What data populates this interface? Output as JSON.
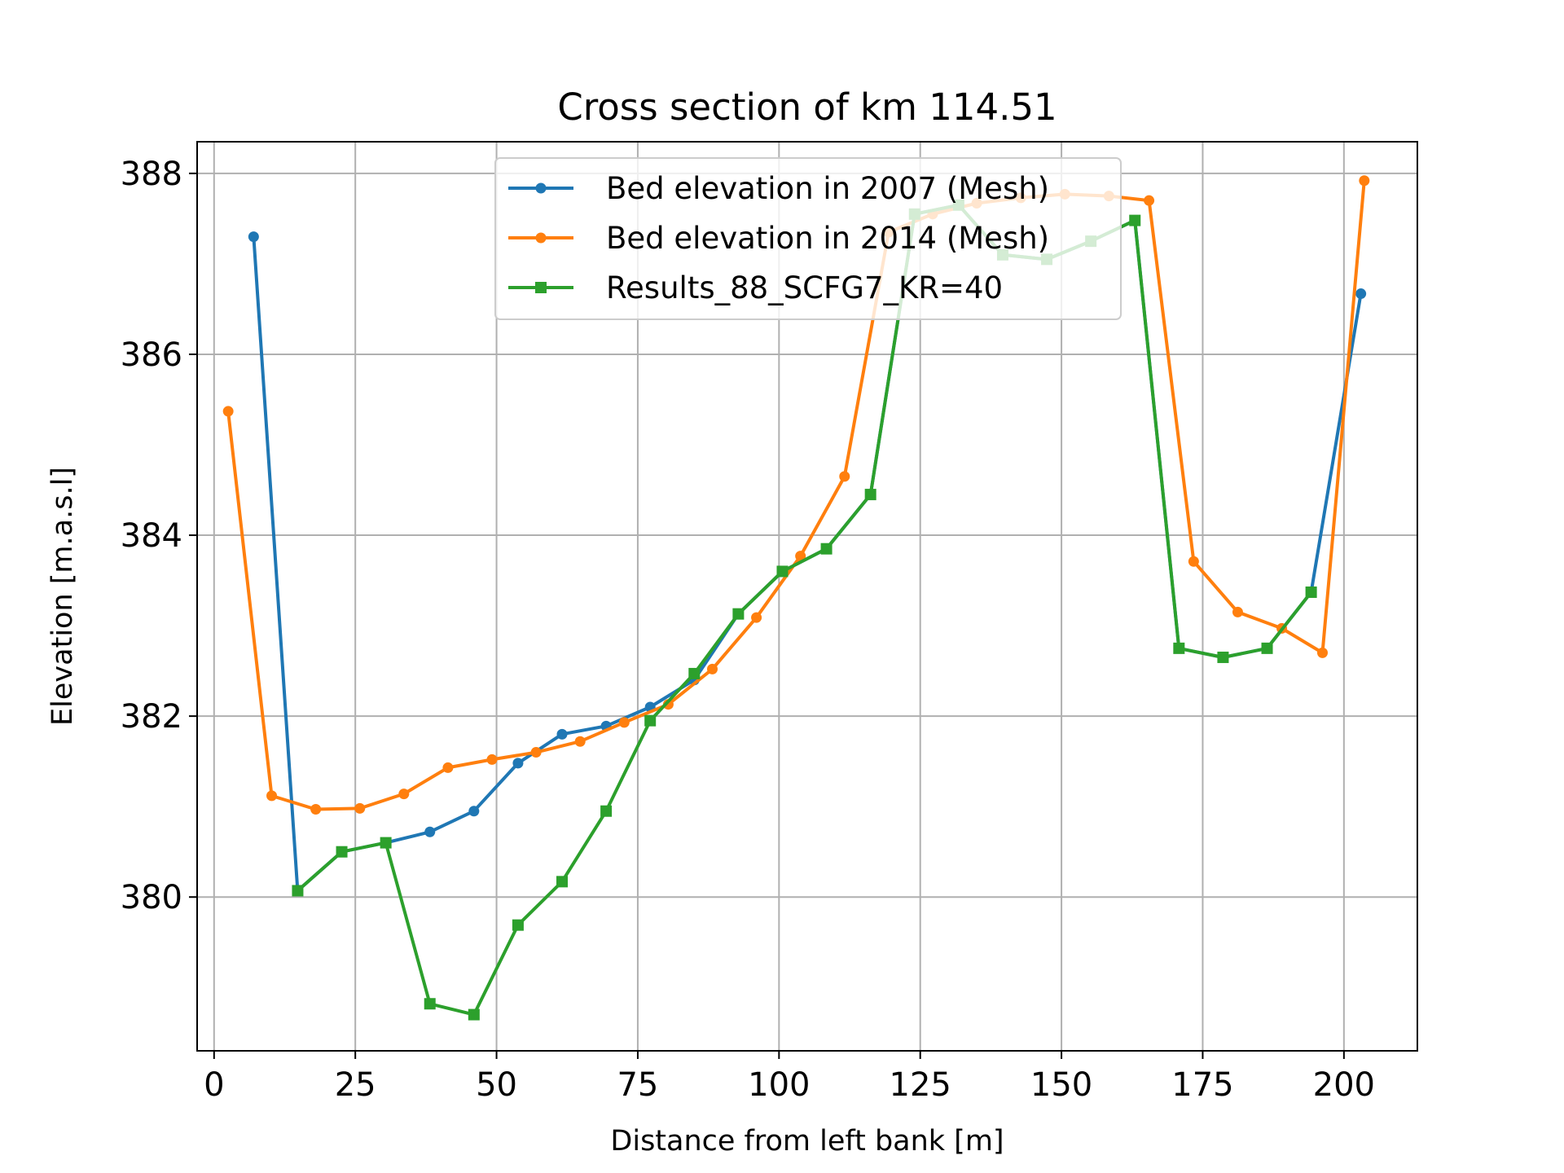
{
  "chart_data": {
    "type": "line",
    "title": "Cross section of km 114.51",
    "xlabel": "Distance from left bank [m]",
    "ylabel": "Elevation [m.a.s.l]",
    "xlim": [
      -3,
      213
    ],
    "ylim": [
      378.3,
      388.35
    ],
    "xticks": [
      0,
      25,
      50,
      75,
      100,
      125,
      150,
      175,
      200
    ],
    "yticks": [
      380,
      382,
      384,
      386,
      388
    ],
    "grid": true,
    "legend_position": "upper-center",
    "series": [
      {
        "name": "Bed elevation in 2007 (Mesh)",
        "color": "#1f77b4",
        "marker": "circle",
        "x": [
          7,
          14.8,
          22.6,
          30.4,
          38.2,
          46,
          53.8,
          61.6,
          69.4,
          77.2,
          85,
          92.8,
          100.6,
          108.4,
          116.2,
          124,
          131.8,
          139.6,
          147.4,
          155.2,
          163,
          170.8,
          178.6,
          186.4,
          194.2,
          203
        ],
        "y": [
          387.3,
          380.07,
          380.5,
          380.6,
          380.72,
          380.95,
          381.48,
          381.8,
          381.89,
          382.1,
          382.4,
          383.13,
          383.6,
          383.85,
          384.45,
          387.55,
          387.65,
          387.1,
          387.05,
          387.25,
          387.48,
          382.75,
          382.65,
          382.75,
          383.37,
          386.67
        ]
      },
      {
        "name": "Bed elevation in 2014 (Mesh)",
        "color": "#ff7f0e",
        "marker": "circle",
        "x": [
          2.5,
          10.2,
          18,
          25.8,
          33.6,
          41.4,
          49.2,
          57,
          64.8,
          72.6,
          80.4,
          88.2,
          96,
          103.8,
          111.6,
          119.4,
          127.2,
          135,
          142.8,
          150.6,
          158.4,
          165.5,
          173.4,
          181.2,
          189,
          196.2,
          203.6
        ],
        "y": [
          385.37,
          381.12,
          380.97,
          380.98,
          381.14,
          381.43,
          381.52,
          381.6,
          381.72,
          381.93,
          382.13,
          382.52,
          383.09,
          383.77,
          384.65,
          387.35,
          387.55,
          387.67,
          387.73,
          387.77,
          387.75,
          387.7,
          383.71,
          383.15,
          382.97,
          382.7,
          387.92
        ]
      },
      {
        "name": "Results_88_SCFG7_KR=40",
        "color": "#2ca02c",
        "marker": "square",
        "x": [
          14.8,
          22.6,
          30.4,
          38.2,
          46,
          53.8,
          61.6,
          69.4,
          77.2,
          85,
          92.8,
          100.6,
          108.4,
          116.2,
          124,
          131.8,
          139.6,
          147.4,
          155.2,
          163,
          170.8,
          178.6,
          186.4,
          194.2
        ],
        "y": [
          380.07,
          380.5,
          380.6,
          378.82,
          378.7,
          379.69,
          380.17,
          380.95,
          381.95,
          382.47,
          383.13,
          383.6,
          383.85,
          384.45,
          387.55,
          387.65,
          387.1,
          387.05,
          387.25,
          387.48,
          382.75,
          382.65,
          382.75,
          383.37
        ]
      }
    ]
  }
}
